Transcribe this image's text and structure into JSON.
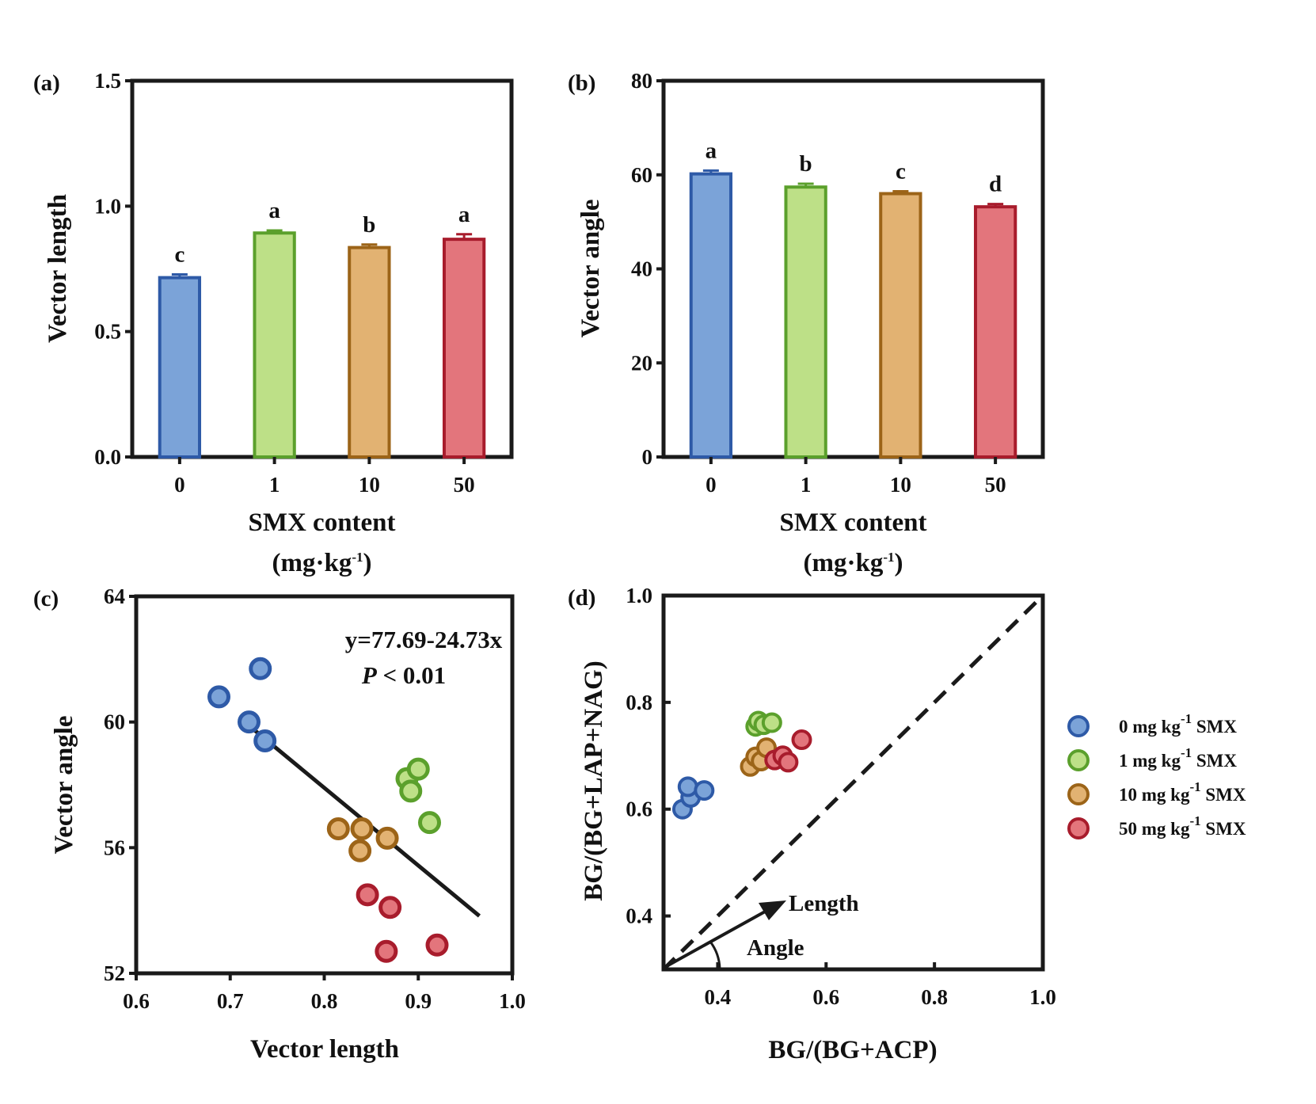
{
  "colors": {
    "g0": {
      "fill": "#7ba3d8",
      "stroke": "#2e5aa7"
    },
    "g1": {
      "fill": "#bde087",
      "stroke": "#5ba02c"
    },
    "g10": {
      "fill": "#e2b272",
      "stroke": "#9c6418"
    },
    "g50": {
      "fill": "#e3757c",
      "stroke": "#a81c2c"
    }
  },
  "legend": {
    "entries": [
      {
        "key": "g0",
        "pre": "0 mg kg",
        "sup": "-1",
        "post": " SMX"
      },
      {
        "key": "g1",
        "pre": "1  mg kg",
        "sup": "-1",
        "post": " SMX"
      },
      {
        "key": "g10",
        "pre": "10 mg kg",
        "sup": "-1",
        "post": " SMX"
      },
      {
        "key": "g50",
        "pre": "50 mg kg",
        "sup": "-1",
        "post": " SMX"
      }
    ]
  },
  "chart_data": [
    {
      "panel": "(a)",
      "type": "bar",
      "categories": [
        "0",
        "1",
        "10",
        "50"
      ],
      "keys": [
        "g0",
        "g1",
        "g10",
        "g50"
      ],
      "values": [
        0.715,
        0.893,
        0.835,
        0.868
      ],
      "errors": [
        0.013,
        0.01,
        0.012,
        0.02
      ],
      "significance": [
        "c",
        "a",
        "b",
        "a"
      ],
      "ylabel": "Vector length",
      "xlabel": "SMX content",
      "xlabel_unit": {
        "pre": "(mg·kg",
        "sup": "-1",
        "post": ")"
      },
      "ylim": [
        0,
        1.5
      ],
      "yticks": [
        "0.0",
        "0.5",
        "1.0",
        "1.5"
      ]
    },
    {
      "panel": "(b)",
      "type": "bar",
      "categories": [
        "0",
        "1",
        "10",
        "50"
      ],
      "keys": [
        "g0",
        "g1",
        "g10",
        "g50"
      ],
      "values": [
        60.2,
        57.4,
        56.0,
        53.2
      ],
      "errors": [
        0.7,
        0.7,
        0.5,
        0.6
      ],
      "significance": [
        "a",
        "b",
        "c",
        "d"
      ],
      "ylabel": "Vector angle",
      "xlabel": "SMX content",
      "xlabel_unit": {
        "pre": "(mg·kg",
        "sup": "-1",
        "post": ")"
      },
      "ylim": [
        0,
        80
      ],
      "yticks": [
        "0",
        "20",
        "40",
        "60",
        "80"
      ]
    },
    {
      "panel": "(c)",
      "type": "scatter",
      "xlabel": "Vector length",
      "ylabel": "Vector angle",
      "xlim": [
        0.6,
        1.0
      ],
      "ylim": [
        52,
        64
      ],
      "xticks": [
        "0.6",
        "0.7",
        "0.8",
        "0.9",
        "1.0"
      ],
      "yticks": [
        "52",
        "56",
        "60",
        "64"
      ],
      "equation": "y=77.69-24.73x",
      "pvalue": {
        "var": "P",
        "rest": " < 0.01"
      },
      "fit": {
        "intercept": 77.69,
        "slope": -24.73,
        "x_range": [
          0.71,
          0.965
        ]
      },
      "series": [
        {
          "key": "g0",
          "points": [
            [
              0.688,
              60.8
            ],
            [
              0.72,
              60.0
            ],
            [
              0.732,
              61.7
            ],
            [
              0.737,
              59.4
            ]
          ]
        },
        {
          "key": "g1",
          "points": [
            [
              0.888,
              58.2
            ],
            [
              0.892,
              57.8
            ],
            [
              0.9,
              58.5
            ],
            [
              0.912,
              56.8
            ]
          ]
        },
        {
          "key": "g10",
          "points": [
            [
              0.815,
              56.6
            ],
            [
              0.838,
              55.9
            ],
            [
              0.84,
              56.6
            ],
            [
              0.867,
              56.3
            ]
          ]
        },
        {
          "key": "g50",
          "points": [
            [
              0.846,
              54.5
            ],
            [
              0.866,
              52.7
            ],
            [
              0.87,
              54.1
            ],
            [
              0.92,
              52.9
            ]
          ]
        }
      ]
    },
    {
      "panel": "(d)",
      "type": "scatter",
      "xlabel": "BG/(BG+ACP)",
      "ylabel": "BG/(BG+LAP+NAG)",
      "xlim": [
        0.3,
        1.0
      ],
      "ylim": [
        0.3,
        1.0
      ],
      "xticks": [
        "0.4",
        "0.6",
        "0.8",
        "1.0"
      ],
      "yticks": [
        "0.4",
        "0.6",
        "0.8",
        "1.0"
      ],
      "annotations": {
        "length": "Length",
        "angle": "Angle"
      },
      "series": [
        {
          "key": "g0",
          "points": [
            [
              0.335,
              0.6
            ],
            [
              0.35,
              0.622
            ],
            [
              0.345,
              0.642
            ],
            [
              0.375,
              0.635
            ]
          ]
        },
        {
          "key": "g1",
          "points": [
            [
              0.47,
              0.755
            ],
            [
              0.475,
              0.765
            ],
            [
              0.485,
              0.758
            ],
            [
              0.5,
              0.762
            ]
          ]
        },
        {
          "key": "g10",
          "points": [
            [
              0.46,
              0.68
            ],
            [
              0.47,
              0.698
            ],
            [
              0.48,
              0.69
            ],
            [
              0.49,
              0.715
            ]
          ]
        },
        {
          "key": "g50",
          "points": [
            [
              0.505,
              0.692
            ],
            [
              0.52,
              0.7
            ],
            [
              0.53,
              0.688
            ],
            [
              0.555,
              0.73
            ]
          ]
        }
      ]
    }
  ]
}
